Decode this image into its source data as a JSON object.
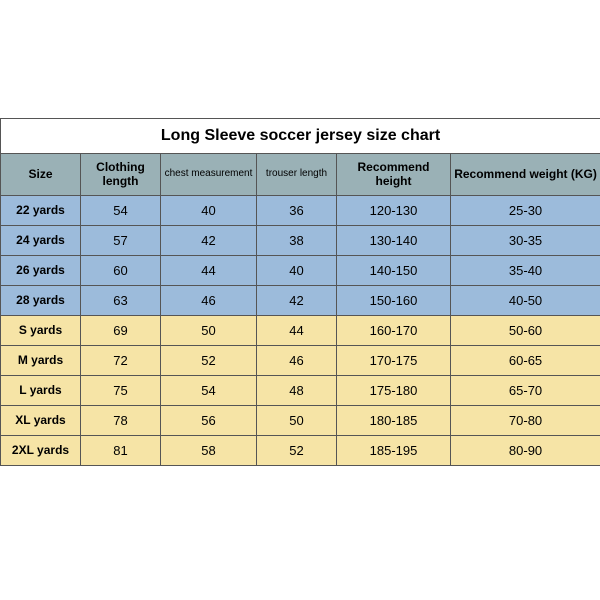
{
  "title": "Long Sleeve soccer jersey size chart",
  "colors": {
    "header_bg": "#9ab1b6",
    "group_a_bg": "#9cbbdb",
    "group_b_bg": "#f6e4a6",
    "border": "#555555"
  },
  "columns": [
    {
      "label": "Size",
      "small": false
    },
    {
      "label": "Clothing length",
      "small": false
    },
    {
      "label": "chest measurement",
      "small": true
    },
    {
      "label": "trouser length",
      "small": true
    },
    {
      "label": "Recommend height",
      "small": false
    },
    {
      "label": "Recommend weight (KG)",
      "small": false
    }
  ],
  "rows": [
    {
      "group": "a",
      "cells": [
        "22 yards",
        "54",
        "40",
        "36",
        "120-130",
        "25-30"
      ]
    },
    {
      "group": "a",
      "cells": [
        "24 yards",
        "57",
        "42",
        "38",
        "130-140",
        "30-35"
      ]
    },
    {
      "group": "a",
      "cells": [
        "26 yards",
        "60",
        "44",
        "40",
        "140-150",
        "35-40"
      ]
    },
    {
      "group": "a",
      "cells": [
        "28 yards",
        "63",
        "46",
        "42",
        "150-160",
        "40-50"
      ]
    },
    {
      "group": "b",
      "cells": [
        "S yards",
        "69",
        "50",
        "44",
        "160-170",
        "50-60"
      ]
    },
    {
      "group": "b",
      "cells": [
        "M yards",
        "72",
        "52",
        "46",
        "170-175",
        "60-65"
      ]
    },
    {
      "group": "b",
      "cells": [
        "L yards",
        "75",
        "54",
        "48",
        "175-180",
        "65-70"
      ]
    },
    {
      "group": "b",
      "cells": [
        "XL yards",
        "78",
        "56",
        "50",
        "180-185",
        "70-80"
      ]
    },
    {
      "group": "b",
      "cells": [
        "2XL yards",
        "81",
        "58",
        "52",
        "185-195",
        "80-90"
      ]
    }
  ]
}
